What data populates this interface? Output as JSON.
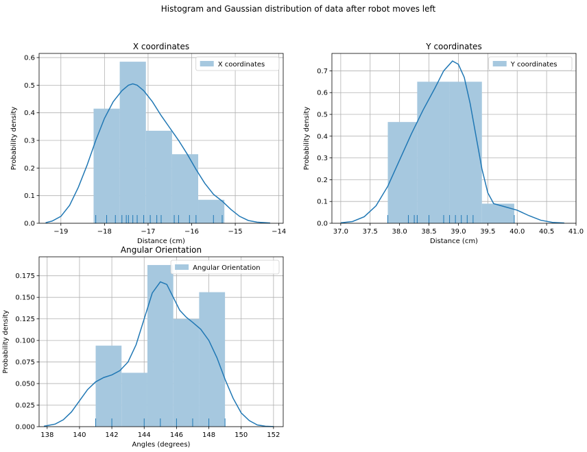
{
  "figure": {
    "suptitle": "Histogram and Gaussian distribution of data after robot moves left"
  },
  "colors": {
    "bar": "#a6c8df",
    "line": "#1f77b4",
    "grid": "#b0b0b0"
  },
  "chart_data": [
    {
      "type": "bar",
      "title": "X coordinates",
      "xlabel": "Distance (cm)",
      "ylabel": "Probability density",
      "xlim": [
        -19.5,
        -13.9
      ],
      "ylim": [
        0,
        0.615
      ],
      "xticks": [
        -19,
        -18,
        -17,
        -16,
        -15,
        -14
      ],
      "yticks": [
        0.0,
        0.1,
        0.2,
        0.3,
        0.4,
        0.5,
        0.6
      ],
      "tick_format": "dec1",
      "grid": true,
      "legend": {
        "label": "X coordinates",
        "placement": "top-right"
      },
      "bins": [
        {
          "x0": -18.25,
          "x1": -17.65,
          "y": 0.415
        },
        {
          "x0": -17.65,
          "x1": -17.05,
          "y": 0.585
        },
        {
          "x0": -17.05,
          "x1": -16.45,
          "y": 0.335
        },
        {
          "x0": -16.45,
          "x1": -15.85,
          "y": 0.25
        },
        {
          "x0": -15.85,
          "x1": -15.25,
          "y": 0.085
        }
      ],
      "rug": [
        -18.2,
        -17.95,
        -17.75,
        -17.6,
        -17.5,
        -17.45,
        -17.35,
        -17.25,
        -17.1,
        -16.95,
        -16.8,
        -16.7,
        -16.4,
        -16.3,
        -16.05,
        -15.9,
        -15.5,
        -15.3
      ],
      "kde": [
        [
          -19.35,
          0.002
        ],
        [
          -19.2,
          0.008
        ],
        [
          -19.0,
          0.025
        ],
        [
          -18.8,
          0.065
        ],
        [
          -18.6,
          0.13
        ],
        [
          -18.4,
          0.21
        ],
        [
          -18.2,
          0.3
        ],
        [
          -18.0,
          0.38
        ],
        [
          -17.8,
          0.44
        ],
        [
          -17.6,
          0.48
        ],
        [
          -17.45,
          0.5
        ],
        [
          -17.35,
          0.505
        ],
        [
          -17.25,
          0.5
        ],
        [
          -17.1,
          0.48
        ],
        [
          -16.9,
          0.44
        ],
        [
          -16.7,
          0.39
        ],
        [
          -16.5,
          0.345
        ],
        [
          -16.3,
          0.3
        ],
        [
          -16.1,
          0.25
        ],
        [
          -15.9,
          0.195
        ],
        [
          -15.7,
          0.145
        ],
        [
          -15.5,
          0.105
        ],
        [
          -15.3,
          0.08
        ],
        [
          -15.1,
          0.05
        ],
        [
          -14.9,
          0.025
        ],
        [
          -14.7,
          0.01
        ],
        [
          -14.5,
          0.004
        ],
        [
          -14.2,
          0.001
        ]
      ]
    },
    {
      "type": "bar",
      "title": "Y coordinates",
      "xlabel": "Distance (cm)",
      "ylabel": "Probability density",
      "xlim": [
        36.85,
        41.0
      ],
      "ylim": [
        0,
        0.78
      ],
      "xticks": [
        37.0,
        37.5,
        38.0,
        38.5,
        39.0,
        39.5,
        40.0,
        40.5,
        41.0
      ],
      "yticks": [
        0.0,
        0.1,
        0.2,
        0.3,
        0.4,
        0.5,
        0.6,
        0.7
      ],
      "tick_format": "dec1",
      "grid": true,
      "legend": {
        "label": "Y coordinates",
        "placement": "top-right"
      },
      "bins": [
        {
          "x0": 37.8,
          "x1": 38.3,
          "y": 0.465
        },
        {
          "x0": 38.3,
          "x1": 38.85,
          "y": 0.65
        },
        {
          "x0": 38.85,
          "x1": 39.4,
          "y": 0.65
        },
        {
          "x0": 39.4,
          "x1": 39.95,
          "y": 0.09
        }
      ],
      "rug": [
        37.8,
        38.15,
        38.25,
        38.3,
        38.5,
        38.75,
        38.85,
        38.95,
        39.05,
        39.15,
        39.25,
        39.95
      ],
      "kde": [
        [
          37.0,
          0.002
        ],
        [
          37.2,
          0.008
        ],
        [
          37.4,
          0.03
        ],
        [
          37.6,
          0.08
        ],
        [
          37.8,
          0.17
        ],
        [
          38.0,
          0.29
        ],
        [
          38.2,
          0.41
        ],
        [
          38.4,
          0.52
        ],
        [
          38.6,
          0.62
        ],
        [
          38.75,
          0.7
        ],
        [
          38.9,
          0.745
        ],
        [
          39.0,
          0.73
        ],
        [
          39.1,
          0.67
        ],
        [
          39.2,
          0.55
        ],
        [
          39.3,
          0.4
        ],
        [
          39.4,
          0.25
        ],
        [
          39.5,
          0.14
        ],
        [
          39.6,
          0.09
        ],
        [
          39.8,
          0.075
        ],
        [
          40.0,
          0.06
        ],
        [
          40.2,
          0.035
        ],
        [
          40.4,
          0.014
        ],
        [
          40.6,
          0.004
        ],
        [
          40.8,
          0.001
        ]
      ]
    },
    {
      "type": "bar",
      "title": "Angular Orientation",
      "xlabel": "Angles (degrees)",
      "ylabel": "Probability density",
      "xlim": [
        137.5,
        152.6
      ],
      "ylim": [
        0,
        0.197
      ],
      "xticks": [
        138,
        140,
        142,
        144,
        146,
        148,
        150,
        152
      ],
      "yticks": [
        0.0,
        0.025,
        0.05,
        0.075,
        0.1,
        0.125,
        0.15,
        0.175
      ],
      "tick_format": "dec3",
      "grid": true,
      "legend": {
        "label": "Angular Orientation",
        "placement": "top-right"
      },
      "bins": [
        {
          "x0": 141.0,
          "x1": 142.6,
          "y": 0.094
        },
        {
          "x0": 142.6,
          "x1": 144.2,
          "y": 0.0625
        },
        {
          "x0": 144.2,
          "x1": 145.8,
          "y": 0.1875
        },
        {
          "x0": 145.8,
          "x1": 147.4,
          "y": 0.125
        },
        {
          "x0": 147.4,
          "x1": 149.0,
          "y": 0.156
        }
      ],
      "rug": [
        141,
        142,
        144,
        145,
        146,
        147,
        148,
        149
      ],
      "kde": [
        [
          137.8,
          0.0005
        ],
        [
          138.5,
          0.003
        ],
        [
          139.0,
          0.008
        ],
        [
          139.5,
          0.017
        ],
        [
          140.0,
          0.03
        ],
        [
          140.5,
          0.043
        ],
        [
          141.0,
          0.052
        ],
        [
          141.5,
          0.057
        ],
        [
          142.0,
          0.06
        ],
        [
          142.5,
          0.065
        ],
        [
          143.0,
          0.075
        ],
        [
          143.5,
          0.095
        ],
        [
          144.0,
          0.125
        ],
        [
          144.5,
          0.155
        ],
        [
          145.0,
          0.168
        ],
        [
          145.4,
          0.165
        ],
        [
          145.8,
          0.15
        ],
        [
          146.2,
          0.135
        ],
        [
          146.6,
          0.127
        ],
        [
          147.0,
          0.121
        ],
        [
          147.5,
          0.113
        ],
        [
          148.0,
          0.1
        ],
        [
          148.5,
          0.08
        ],
        [
          149.0,
          0.055
        ],
        [
          149.5,
          0.033
        ],
        [
          150.0,
          0.016
        ],
        [
          150.5,
          0.007
        ],
        [
          151.0,
          0.002
        ],
        [
          151.5,
          0.0005
        ],
        [
          152.0,
          0.0001
        ]
      ]
    }
  ]
}
